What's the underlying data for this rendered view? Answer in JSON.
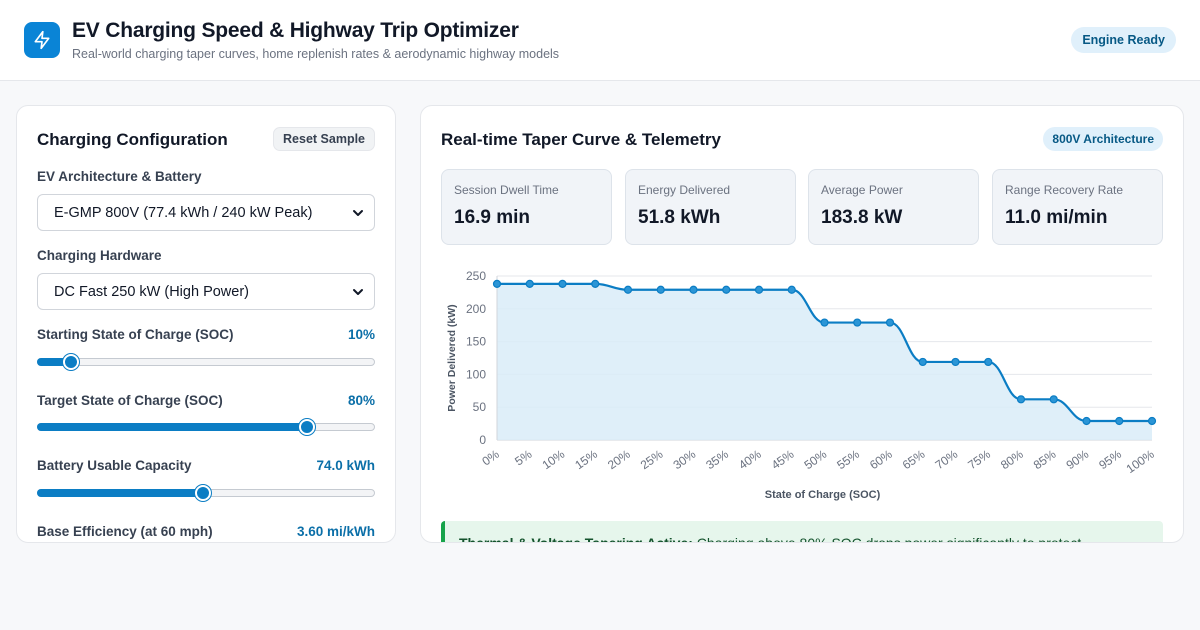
{
  "header": {
    "title": "EV Charging Speed & Highway Trip Optimizer",
    "subtitle": "Real-world charging taper curves, home replenish rates & aerodynamic highway models",
    "status": "Engine Ready",
    "logo_icon": "lightning-bolt-icon"
  },
  "config": {
    "title": "Charging Configuration",
    "reset_label": "Reset Sample",
    "architecture": {
      "label": "EV Architecture & Battery",
      "selected": "E-GMP 800V (77.4 kWh / 240 kW Peak)"
    },
    "hardware": {
      "label": "Charging Hardware",
      "selected": "DC Fast 250 kW (High Power)"
    },
    "start_soc": {
      "label": "Starting State of Charge (SOC)",
      "display": "10%",
      "value": 10,
      "min": 0,
      "max": 100
    },
    "target_soc": {
      "label": "Target State of Charge (SOC)",
      "display": "80%",
      "value": 80,
      "min": 0,
      "max": 100
    },
    "capacity": {
      "label": "Battery Usable Capacity",
      "display": "74.0 kWh",
      "fill_fraction": 0.49
    },
    "efficiency": {
      "label": "Base Efficiency (at 60 mph)",
      "display": "3.60 mi/kWh"
    }
  },
  "telemetry": {
    "title": "Real-time Taper Curve & Telemetry",
    "arch_badge": "800V Architecture",
    "stats": [
      {
        "label": "Session Dwell Time",
        "value": "16.9 min"
      },
      {
        "label": "Energy Delivered",
        "value": "51.8 kWh"
      },
      {
        "label": "Average Power",
        "value": "183.8 kW"
      },
      {
        "label": "Range Recovery Rate",
        "value": "11.0 mi/min"
      }
    ],
    "alert": {
      "title": "Thermal & Voltage Tapering Active:",
      "text": " Charging above 80% SOC drops power significantly to protect"
    }
  },
  "chart_data": {
    "type": "area",
    "xlabel": "State of Charge (SOC)",
    "ylabel": "Power Delivered (kW)",
    "x": [
      "0%",
      "5%",
      "10%",
      "15%",
      "20%",
      "25%",
      "30%",
      "35%",
      "40%",
      "45%",
      "50%",
      "55%",
      "60%",
      "65%",
      "70%",
      "75%",
      "80%",
      "85%",
      "90%",
      "95%",
      "100%"
    ],
    "values": [
      238,
      238,
      238,
      238,
      229,
      229,
      229,
      229,
      229,
      229,
      179,
      179,
      179,
      119,
      119,
      119,
      62,
      62,
      29,
      29,
      29
    ],
    "ylim": [
      0,
      250
    ],
    "yticks": [
      0,
      50,
      100,
      150,
      200,
      250
    ],
    "grid": true,
    "colors": {
      "line": "#0b7dc4",
      "fill": "#d9ecf8"
    }
  }
}
